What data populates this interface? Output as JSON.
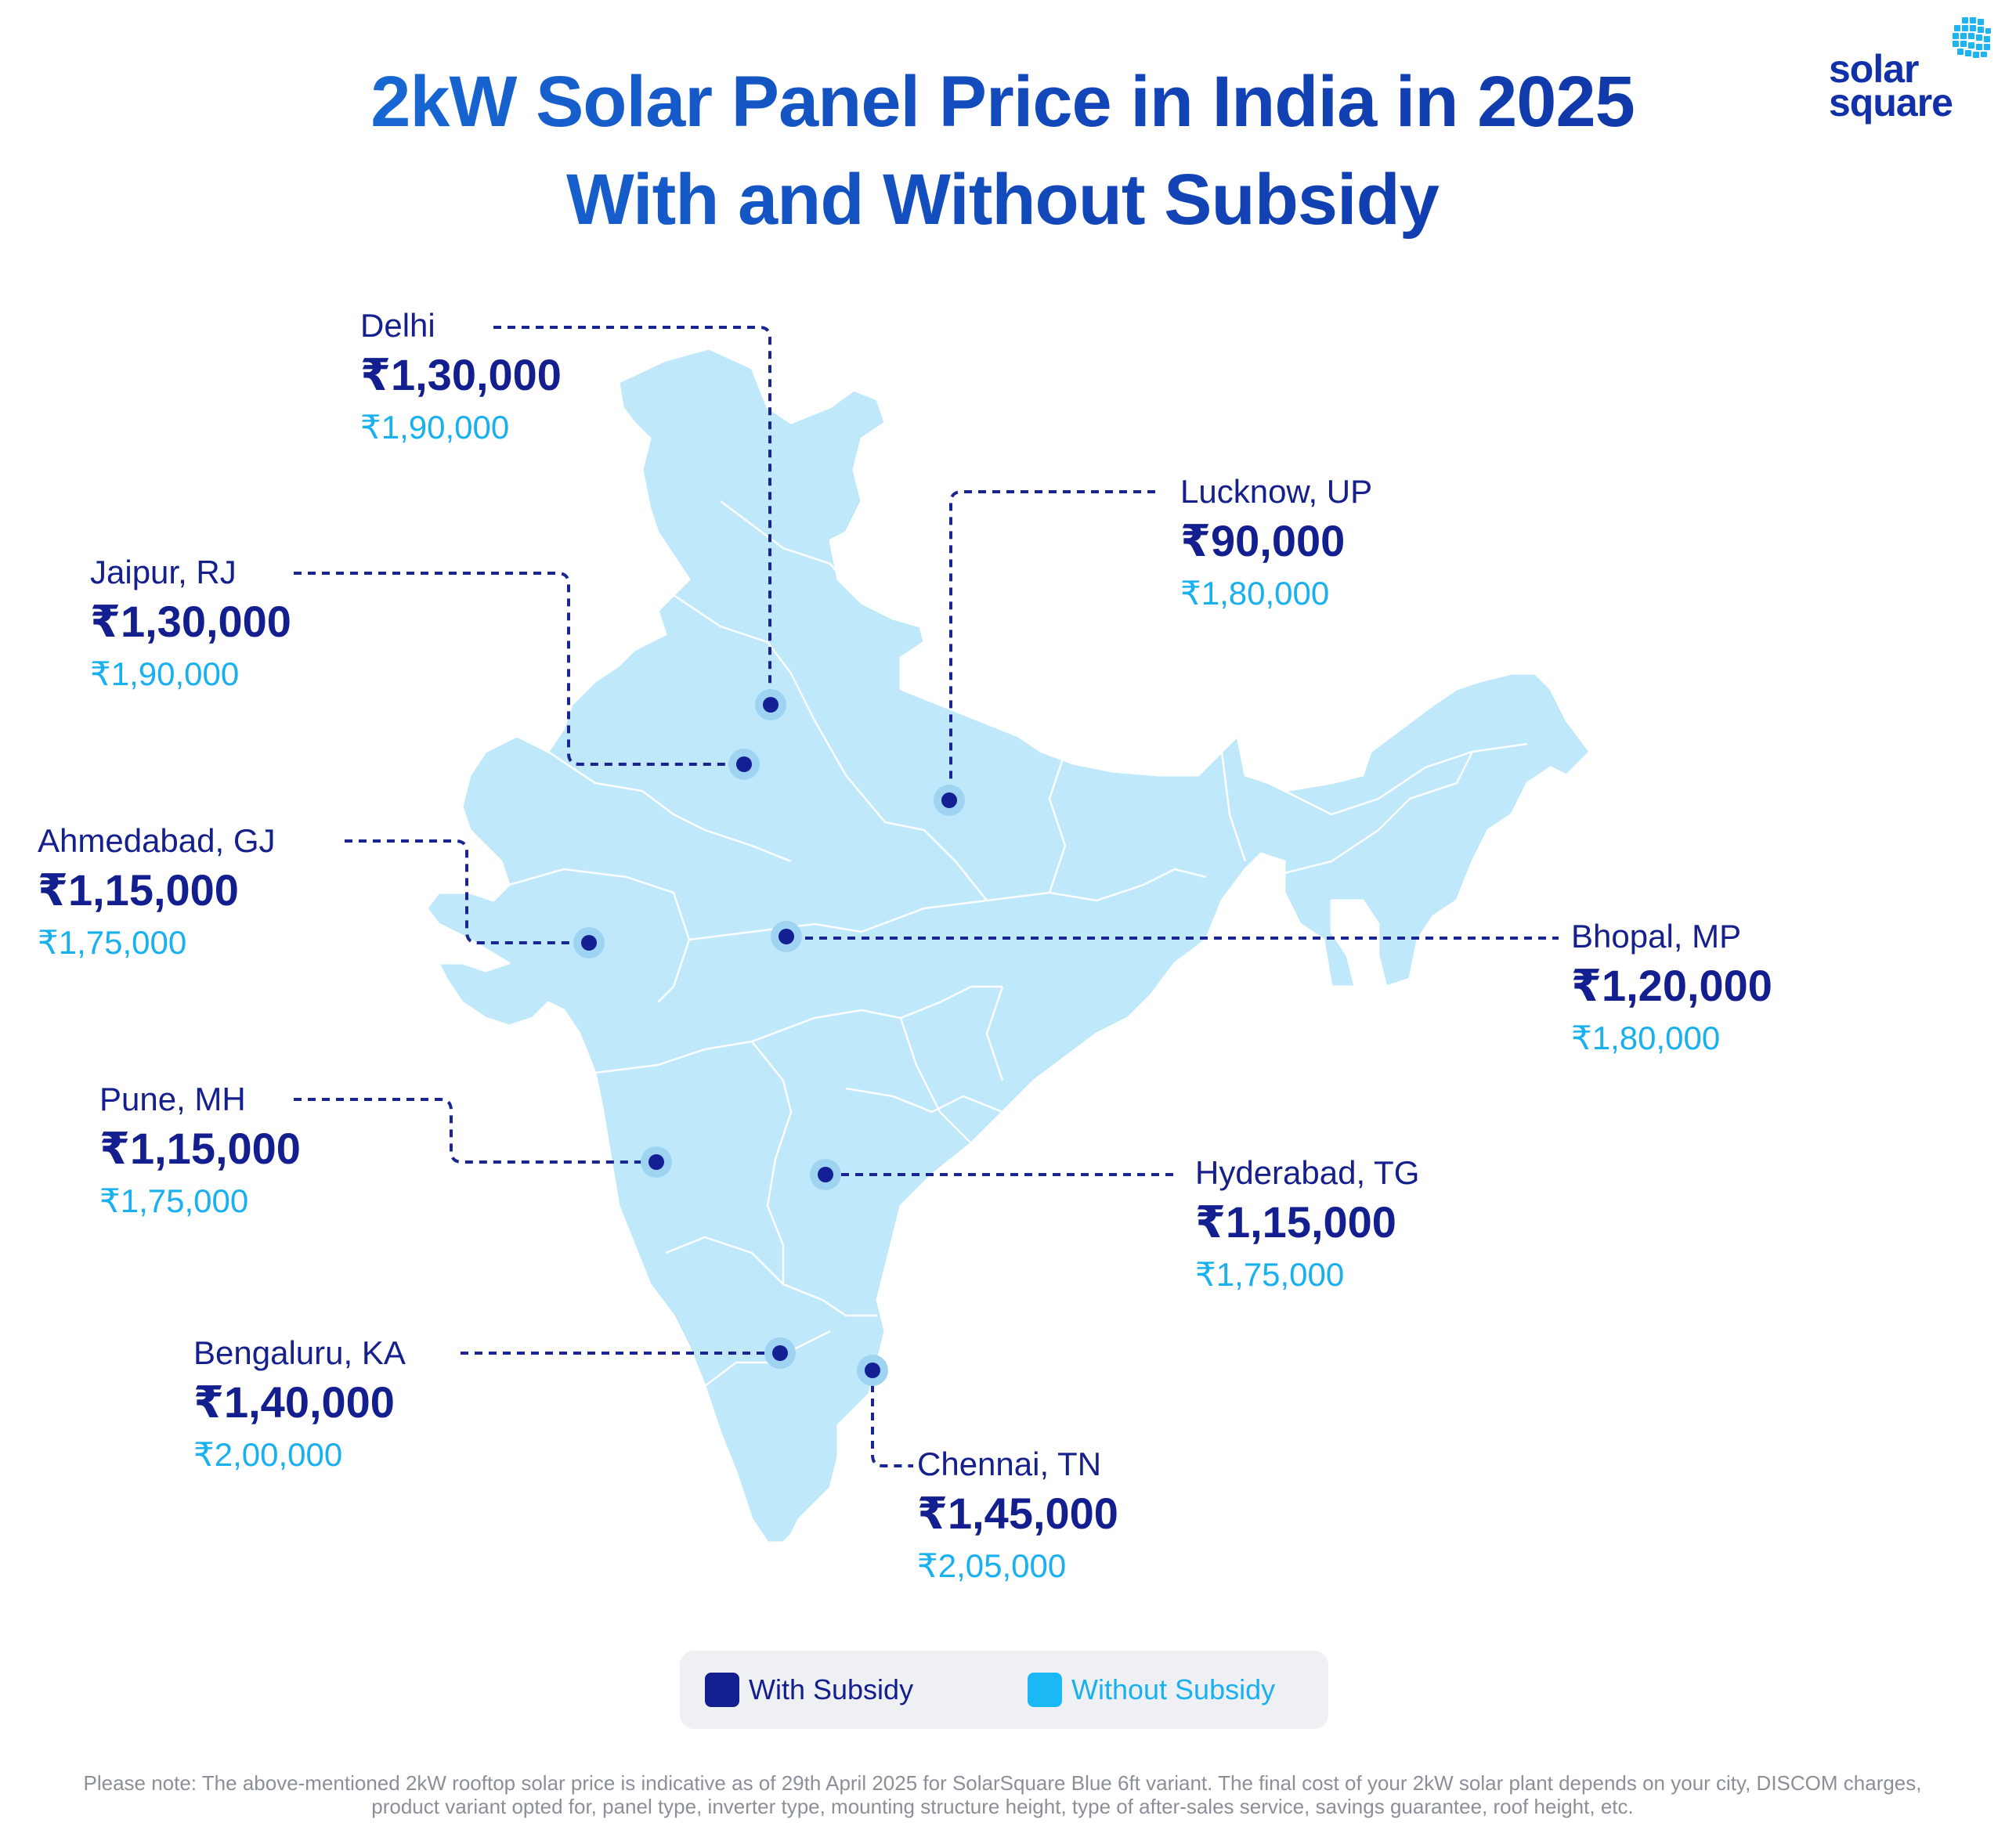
{
  "title": {
    "line1": "2kW Solar Panel Price in India in 2025",
    "line2": "With and Without Subsidy"
  },
  "logo": {
    "word1": "solar",
    "word2": "square",
    "icon": "solar-grid-icon",
    "colors": [
      "#1230a8",
      "#1db4f4"
    ]
  },
  "colors": {
    "with_subsidy": "#131e8f",
    "without_subsidy": "#19b0f0",
    "map_fill": "#bfe9fb",
    "leader_line": "#1a2591"
  },
  "cities": [
    {
      "name": "Delhi",
      "with_subsidy": "₹1,30,000",
      "without_subsidy": "₹1,90,000"
    },
    {
      "name": "Jaipur, RJ",
      "with_subsidy": "₹1,30,000",
      "without_subsidy": "₹1,90,000"
    },
    {
      "name": "Ahmedabad, GJ",
      "with_subsidy": "₹1,15,000",
      "without_subsidy": "₹1,75,000"
    },
    {
      "name": "Pune, MH",
      "with_subsidy": "₹1,15,000",
      "without_subsidy": "₹1,75,000"
    },
    {
      "name": "Bengaluru, KA",
      "with_subsidy": "₹1,40,000",
      "without_subsidy": "₹2,00,000"
    },
    {
      "name": "Lucknow, UP",
      "with_subsidy": "₹90,000",
      "without_subsidy": "₹1,80,000"
    },
    {
      "name": "Bhopal, MP",
      "with_subsidy": "₹1,20,000",
      "without_subsidy": "₹1,80,000"
    },
    {
      "name": "Hyderabad, TG",
      "with_subsidy": "₹1,15,000",
      "without_subsidy": "₹1,75,000"
    },
    {
      "name": "Chennai, TN",
      "with_subsidy": "₹1,45,000",
      "without_subsidy": "₹2,05,000"
    }
  ],
  "legend": {
    "with_label": "With Subsidy",
    "without_label": "Without Subsidy"
  },
  "note": "Please note: The above-mentioned 2kW rooftop solar price is indicative as of 29th April 2025 for SolarSquare Blue 6ft variant. The final cost of your 2kW solar plant depends on your city, DISCOM charges, product variant opted for, panel type, inverter type, mounting structure height, type of after-sales service, savings guarantee, roof height, etc."
}
